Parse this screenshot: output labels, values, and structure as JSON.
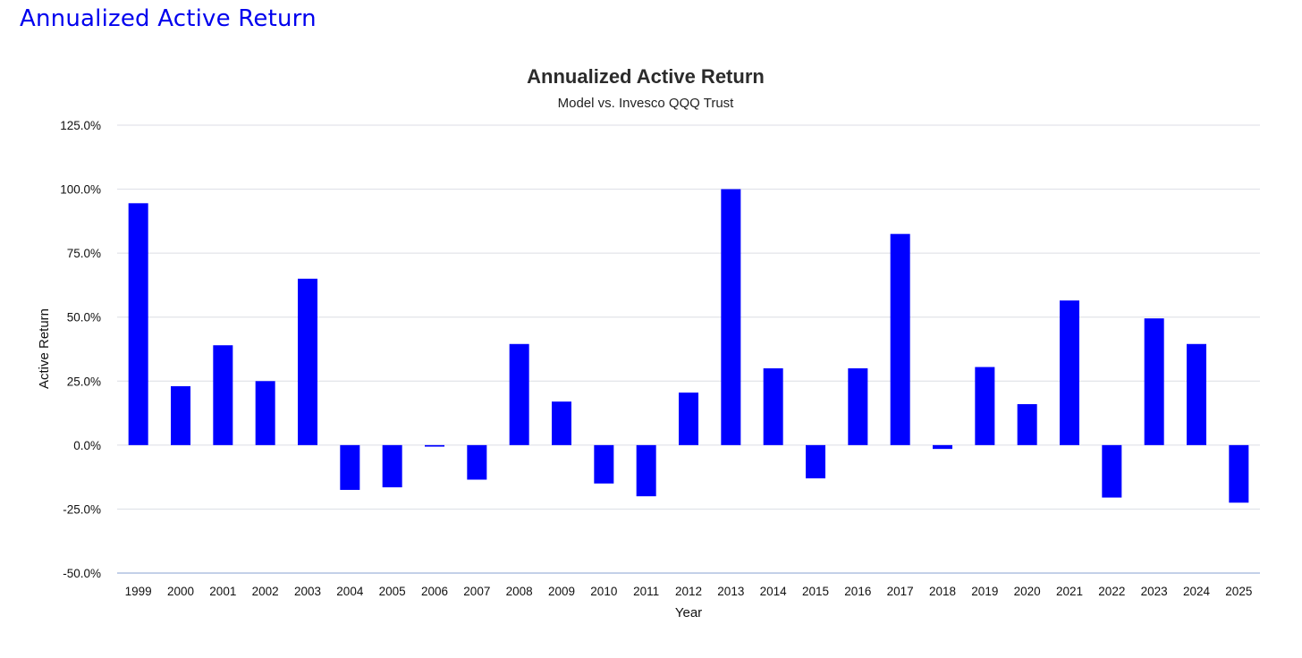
{
  "page": {
    "heading": "Annualized Active Return"
  },
  "colors": {
    "bar": "#0000ff",
    "heading": "#0000ee"
  },
  "chart_data": {
    "type": "bar",
    "title": "Annualized Active Return",
    "subtitle": "Model vs. Invesco QQQ Trust",
    "xlabel": "Year",
    "ylabel": "Active Return",
    "ylim": [
      -50,
      125
    ],
    "yticks": [
      -50,
      -25,
      0,
      25,
      50,
      75,
      100,
      125
    ],
    "ytick_labels": [
      "-50.0%",
      "-25.0%",
      "0.0%",
      "25.0%",
      "50.0%",
      "75.0%",
      "100.0%",
      "125.0%"
    ],
    "grid": true,
    "legend": "none",
    "categories": [
      "1999",
      "2000",
      "2001",
      "2002",
      "2003",
      "2004",
      "2005",
      "2006",
      "2007",
      "2008",
      "2009",
      "2010",
      "2011",
      "2012",
      "2013",
      "2014",
      "2015",
      "2016",
      "2017",
      "2018",
      "2019",
      "2020",
      "2021",
      "2022",
      "2023",
      "2024",
      "2025"
    ],
    "values": [
      94.5,
      23.0,
      39.0,
      25.0,
      65.0,
      -17.5,
      -16.5,
      -0.6,
      -13.5,
      39.5,
      17.0,
      -15.0,
      -20.0,
      20.5,
      100.0,
      30.0,
      -13.0,
      30.0,
      82.5,
      -1.5,
      30.5,
      16.0,
      56.5,
      -20.5,
      49.5,
      39.5,
      -22.5
    ]
  }
}
